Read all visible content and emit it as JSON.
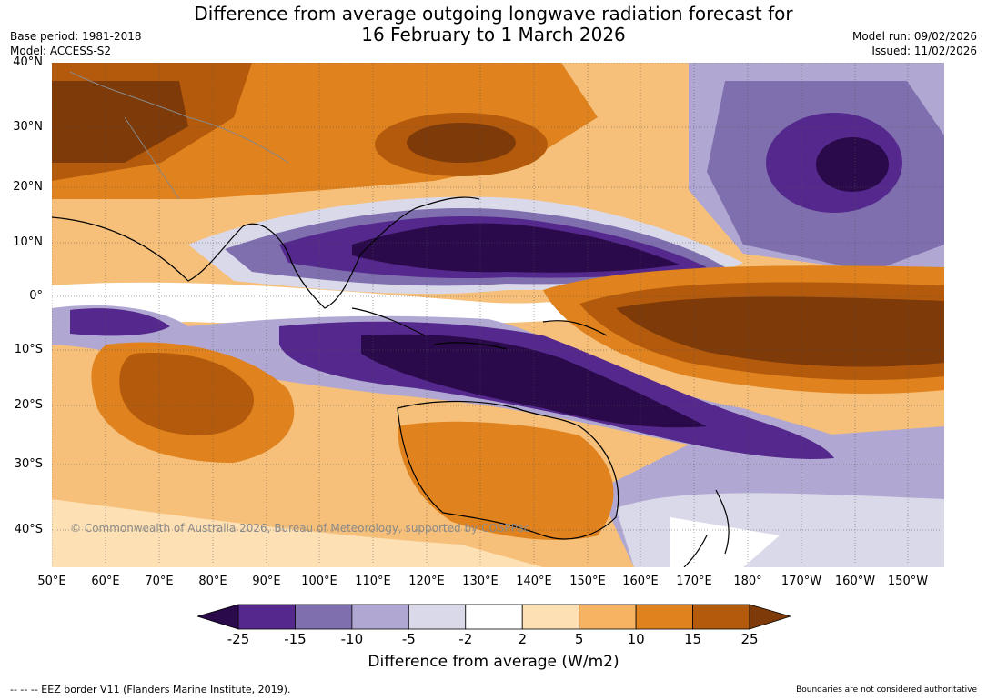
{
  "title": {
    "line1": "Difference from average outgoing longwave radiation forecast for",
    "line2": "16 February to 1 March 2026"
  },
  "meta": {
    "base_period": "Base period: 1981-2018",
    "model": "Model: ACCESS-S2",
    "model_run": "Model run: 09/02/2026",
    "issued": "Issued: 11/02/2026"
  },
  "map": {
    "lat_labels": [
      "40°N",
      "30°N",
      "20°N",
      "10°N",
      "0°",
      "10°S",
      "20°S",
      "30°S",
      "40°S"
    ],
    "lon_labels": [
      "50°E",
      "60°E",
      "70°E",
      "80°E",
      "90°E",
      "100°E",
      "110°E",
      "120°E",
      "130°E",
      "140°E",
      "150°E",
      "160°E",
      "170°E",
      "180°",
      "170°W",
      "160°W",
      "150°W"
    ],
    "copyright": "© Commonwealth of Australia 2026, Bureau of Meteorology, supported by COSPPac"
  },
  "colorbar": {
    "ticks": [
      "-25",
      "-15",
      "-10",
      "-5",
      "-2",
      "2",
      "5",
      "10",
      "15",
      "25"
    ],
    "colors": [
      "#2a0a4a",
      "#54288c",
      "#7f6fae",
      "#b0a8d2",
      "#dad9ea",
      "#ffffff",
      "#fde0b4",
      "#f6b463",
      "#e0821d",
      "#b45a0c",
      "#7e3a08"
    ],
    "label": "Difference from average (W/m2)"
  },
  "footer": {
    "eez": "--  --  -- EEZ border V11 (Flanders Marine Institute, 2019).",
    "boundaries": "Boundaries are not considered authoritative"
  }
}
